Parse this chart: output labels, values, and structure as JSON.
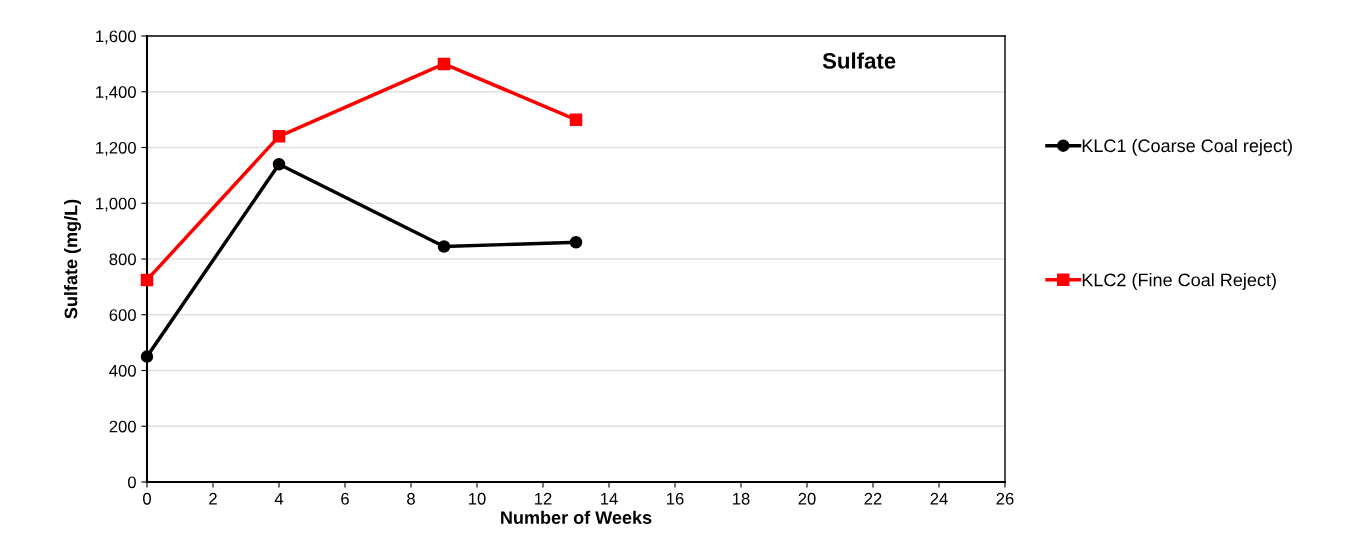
{
  "chart_data": {
    "type": "line",
    "title": "Sulfate",
    "xlabel": "Number of Weeks",
    "ylabel": "Sulfate (mg/L)",
    "x": [
      0,
      4,
      9,
      13
    ],
    "series": [
      {
        "name": "KLC1 (Coarse Coal reject)",
        "color": "#000000",
        "marker": "circle",
        "values": [
          450,
          1140,
          845,
          860
        ]
      },
      {
        "name": "KLC2 (Fine Coal Reject)",
        "color": "#ff0000",
        "marker": "square",
        "values": [
          725,
          1240,
          1500,
          1300
        ]
      }
    ],
    "xlim": [
      0,
      26
    ],
    "xticks": [
      0,
      2,
      4,
      6,
      8,
      10,
      12,
      14,
      16,
      18,
      20,
      22,
      24,
      26
    ],
    "ylim": [
      0,
      1600
    ],
    "yticks": [
      0,
      {
        "value": 200,
        "label": "200"
      },
      {
        "value": 400,
        "label": "400"
      },
      {
        "value": 600,
        "label": "600"
      },
      {
        "value": 800,
        "label": "800"
      },
      {
        "value": 1000,
        "label": "1,000"
      },
      {
        "value": 1200,
        "label": "1,200"
      },
      {
        "value": 1400,
        "label": "1,400"
      },
      {
        "value": 1600,
        "label": "1,600"
      }
    ],
    "grid": "y",
    "legend": "right"
  }
}
